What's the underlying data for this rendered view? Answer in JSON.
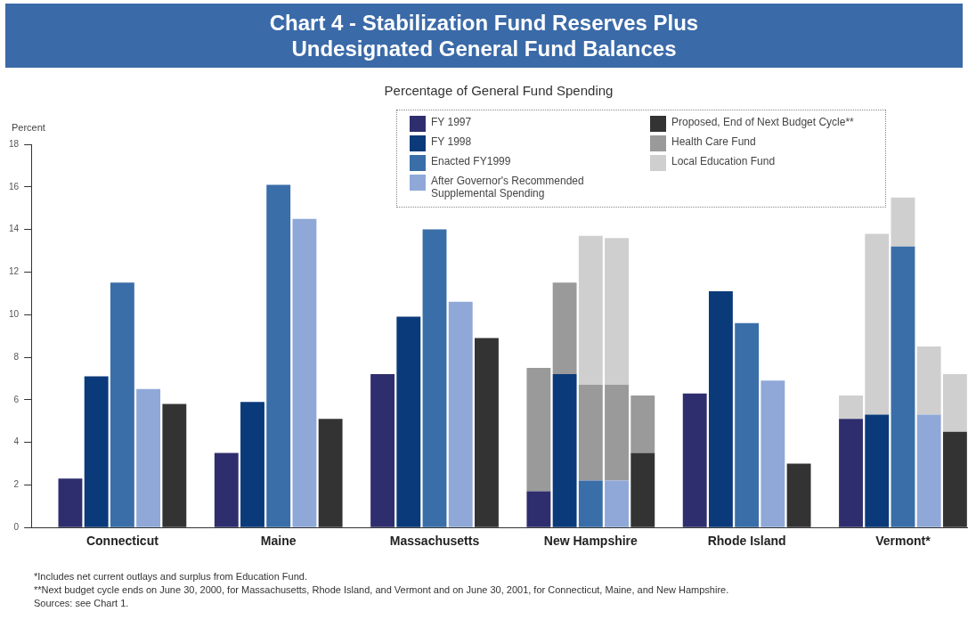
{
  "chart_data": {
    "type": "bar",
    "title": "Chart 4 - Stabilization Fund Reserves Plus Undesignated General Fund Balances",
    "subtitle": "Percentage of General Fund Spending",
    "ylabel": "Percent",
    "categories": [
      null,
      null,
      null,
      "Connecticut",
      null,
      null,
      null,
      null,
      null,
      "Maine",
      null,
      null,
      null,
      null,
      null,
      "Massachusetts",
      null,
      null,
      null,
      null,
      null,
      "New Hampshire",
      null,
      null,
      null,
      null,
      null,
      "Rhode Island",
      null,
      null,
      null,
      null,
      null,
      "Vermont*",
      null,
      null
    ],
    "stacked": true,
    "ylim": [
      0,
      18
    ],
    "yticks": [
      0,
      2,
      4,
      6,
      8,
      10,
      12,
      14,
      16,
      18
    ],
    "grid": false,
    "legend": "top right",
    "series": [
      {
        "name": "FY 1997",
        "color": "#2e2e6e",
        "values": [
          null,
          2.3,
          null,
          null,
          null,
          null,
          null,
          3.5,
          null,
          null,
          null,
          null,
          null,
          7.2,
          null,
          null,
          null,
          null,
          null,
          1.7,
          null,
          null,
          null,
          null,
          null,
          6.3,
          null,
          null,
          null,
          null,
          null,
          5.1,
          null,
          null,
          null,
          null
        ]
      },
      {
        "name": "FY 1998",
        "color": "#0a3a7a",
        "values": [
          null,
          null,
          7.1,
          null,
          null,
          null,
          null,
          null,
          5.9,
          null,
          null,
          null,
          null,
          null,
          9.9,
          null,
          null,
          null,
          null,
          null,
          7.2,
          null,
          null,
          null,
          null,
          null,
          11.1,
          null,
          null,
          null,
          null,
          null,
          5.3,
          null,
          null,
          null
        ]
      },
      {
        "name": "Enacted FY1999",
        "color": "#3a6ea8",
        "values": [
          null,
          null,
          null,
          11.5,
          null,
          null,
          null,
          null,
          null,
          16.1,
          null,
          null,
          null,
          null,
          null,
          14.0,
          null,
          null,
          null,
          null,
          null,
          2.2,
          null,
          null,
          null,
          null,
          null,
          9.6,
          null,
          null,
          null,
          null,
          null,
          13.2,
          null,
          null
        ]
      },
      {
        "name": "After Governor's Recommended Supplemental Spending",
        "color": "#8fa8d8",
        "values": [
          null,
          null,
          null,
          null,
          6.5,
          null,
          null,
          null,
          null,
          null,
          14.5,
          null,
          null,
          null,
          null,
          null,
          10.6,
          null,
          null,
          null,
          null,
          null,
          2.2,
          null,
          null,
          null,
          null,
          null,
          6.9,
          null,
          null,
          null,
          null,
          null,
          5.3,
          null
        ]
      },
      {
        "name": "Proposed, End of Next Budget Cycle**",
        "color": "#333333",
        "values": [
          null,
          null,
          null,
          null,
          null,
          5.8,
          null,
          null,
          null,
          null,
          null,
          5.1,
          null,
          null,
          null,
          null,
          null,
          8.9,
          null,
          null,
          null,
          null,
          null,
          3.5,
          null,
          null,
          null,
          null,
          null,
          3.0,
          null,
          null,
          null,
          null,
          null,
          4.5
        ]
      },
      {
        "name": "Health Care Fund",
        "color": "#9a9a9a",
        "values": [
          null,
          null,
          null,
          null,
          null,
          null,
          null,
          null,
          null,
          null,
          null,
          null,
          null,
          null,
          null,
          null,
          null,
          null,
          null,
          5.8,
          4.3,
          4.5,
          4.5,
          2.7,
          null,
          null,
          null,
          null,
          null,
          null,
          null,
          null,
          null,
          null,
          null,
          null
        ]
      },
      {
        "name": "Local Education Fund",
        "color": "#cfcfcf",
        "values": [
          null,
          null,
          null,
          null,
          null,
          null,
          null,
          null,
          null,
          null,
          null,
          null,
          null,
          null,
          null,
          null,
          null,
          null,
          null,
          null,
          null,
          7.0,
          6.9,
          null,
          null,
          null,
          null,
          null,
          null,
          null,
          null,
          1.1,
          8.5,
          2.3,
          3.2,
          2.7
        ]
      }
    ],
    "annotations": [
      "*Includes net current outlays and surplus from Education Fund.",
      "**Next budget cycle ends on June 30, 2000, for Massachusetts, Rhode Island, and Vermont and on June 30, 2001, for Connecticut, Maine, and New Hampshire.",
      "Sources: see Chart 1."
    ]
  }
}
